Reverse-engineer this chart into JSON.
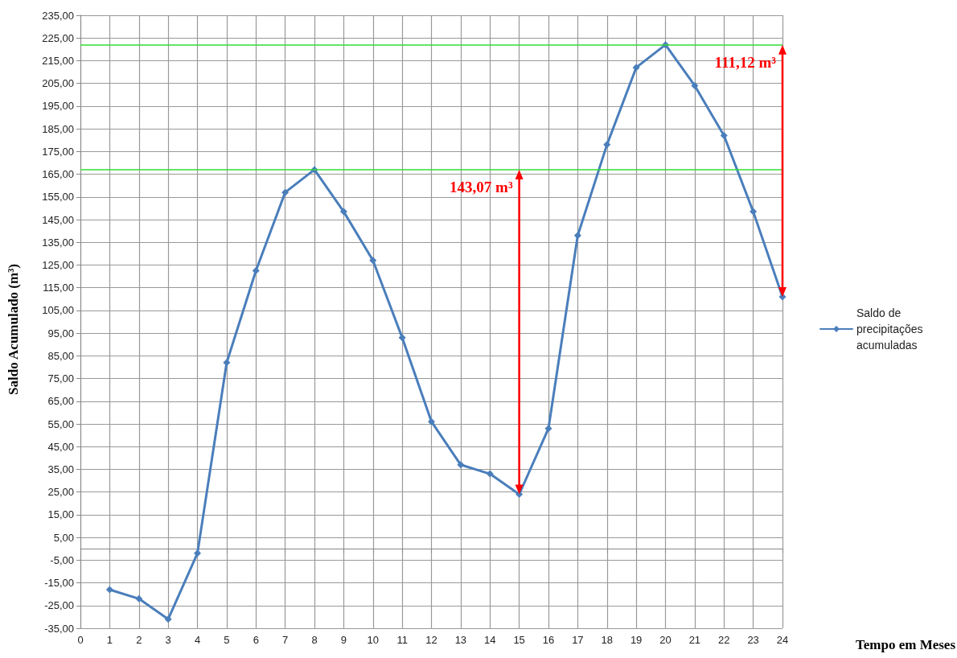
{
  "chart_data": {
    "type": "line",
    "xlabel": "Tempo em Meses",
    "ylabel": "Saldo Acumulado (m³)",
    "x": [
      1,
      2,
      3,
      4,
      5,
      6,
      7,
      8,
      9,
      10,
      11,
      12,
      13,
      14,
      15,
      16,
      17,
      18,
      19,
      20,
      21,
      22,
      23,
      24
    ],
    "series": [
      {
        "name": "Saldo de precipitações acumuladas",
        "color": "#4a7ebb",
        "values": [
          -18,
          -22,
          -31,
          -2,
          82,
          122.5,
          157,
          167,
          148.5,
          127,
          93,
          56,
          37,
          33,
          24,
          53,
          138,
          178,
          212,
          222,
          204,
          182,
          148.5,
          111
        ]
      }
    ],
    "xlim": [
      0,
      24
    ],
    "xticks": [
      0,
      1,
      2,
      3,
      4,
      5,
      6,
      7,
      8,
      9,
      10,
      11,
      12,
      13,
      14,
      15,
      16,
      17,
      18,
      19,
      20,
      21,
      22,
      23,
      24
    ],
    "ylim": [
      -35,
      235
    ],
    "yticks": [
      {
        "value": -35,
        "label": "-35,00"
      },
      {
        "value": -25,
        "label": "-25,00"
      },
      {
        "value": -15,
        "label": "-15,00"
      },
      {
        "value": -5,
        "label": "-5,00"
      },
      {
        "value": 5,
        "label": "5,00"
      },
      {
        "value": 15,
        "label": "15,00"
      },
      {
        "value": 25,
        "label": "25,00"
      },
      {
        "value": 35,
        "label": "35,00"
      },
      {
        "value": 45,
        "label": "45,00"
      },
      {
        "value": 55,
        "label": "55,00"
      },
      {
        "value": 65,
        "label": "65,00"
      },
      {
        "value": 75,
        "label": "75,00"
      },
      {
        "value": 85,
        "label": "85,00"
      },
      {
        "value": 95,
        "label": "95,00"
      },
      {
        "value": 105,
        "label": "105,00"
      },
      {
        "value": 115,
        "label": "115,00"
      },
      {
        "value": 125,
        "label": "125,00"
      },
      {
        "value": 135,
        "label": "135,00"
      },
      {
        "value": 145,
        "label": "145,00"
      },
      {
        "value": 155,
        "label": "155,00"
      },
      {
        "value": 165,
        "label": "165,00"
      },
      {
        "value": 175,
        "label": "175,00"
      },
      {
        "value": 185,
        "label": "185,00"
      },
      {
        "value": 195,
        "label": "195,00"
      },
      {
        "value": 205,
        "label": "205,00"
      },
      {
        "value": 215,
        "label": "215,00"
      },
      {
        "value": 225,
        "label": "225,00"
      },
      {
        "value": 235,
        "label": "235,00"
      }
    ],
    "ref_lines": [
      {
        "axis": "y",
        "value": 167,
        "color": "#33dd33"
      },
      {
        "axis": "y",
        "value": 222,
        "color": "#33dd33"
      }
    ],
    "annotations": [
      {
        "text": "143,07 m³",
        "x": 15,
        "y": 167
      },
      {
        "text": "111,12 m³",
        "x": 24,
        "y": 222
      }
    ],
    "grid": true,
    "legend": "right",
    "marker": "diamond",
    "line_style": "solid"
  }
}
